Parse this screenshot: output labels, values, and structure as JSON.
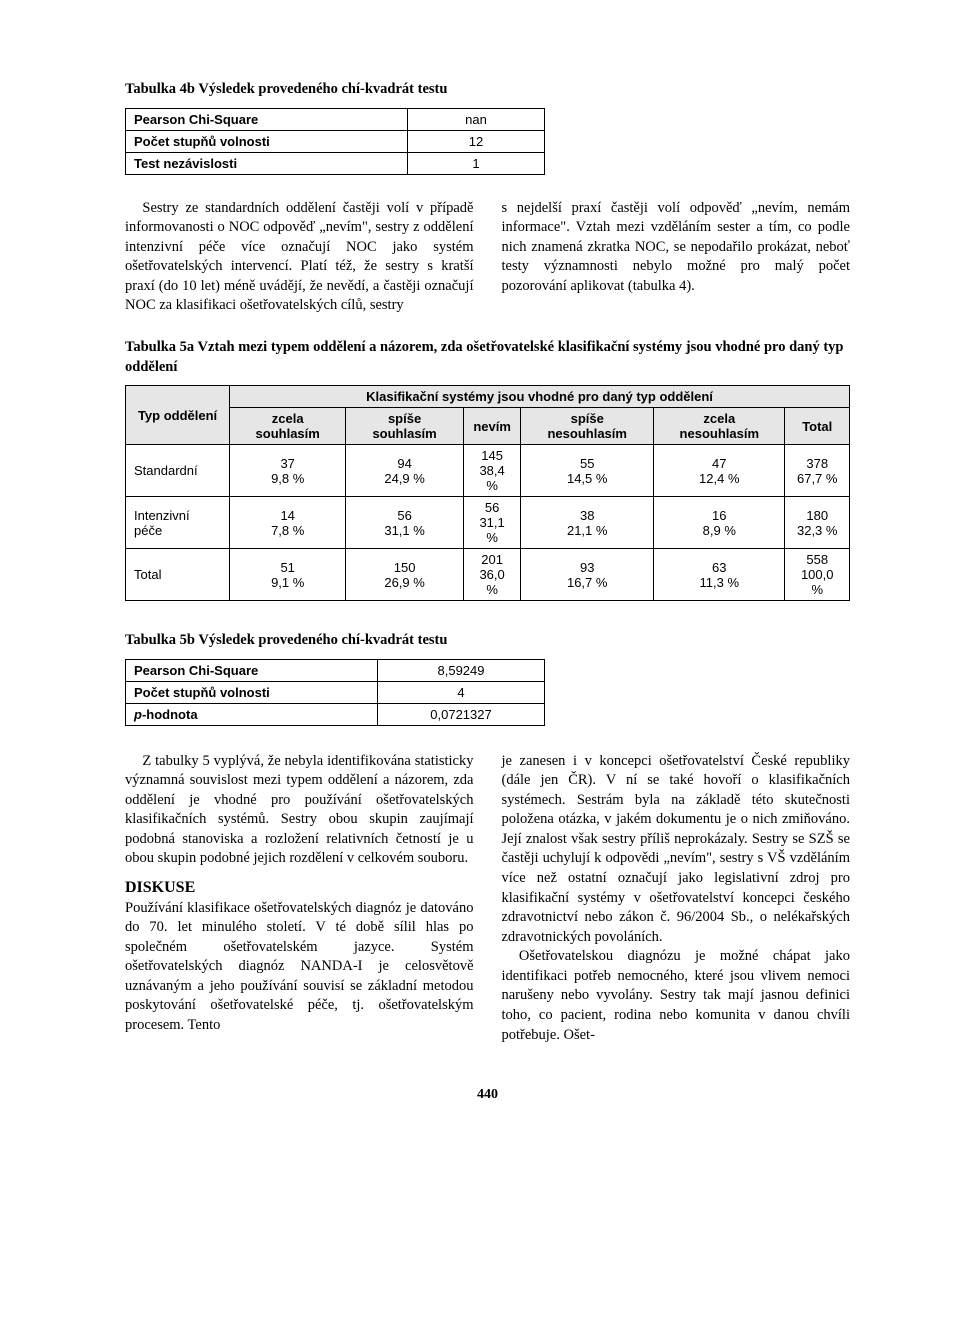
{
  "table4b": {
    "caption": "Tabulka 4b  Výsledek provedeného chí-kvadrát testu",
    "rows": [
      {
        "label": "Pearson Chi-Square",
        "value": "nan"
      },
      {
        "label": "Počet stupňů volnosti",
        "value": "12"
      },
      {
        "label": "Test nezávislosti",
        "value": "1"
      }
    ]
  },
  "para4_left": "Sestry ze standardních oddělení častěji volí v případě informovanosti o NOC odpověď „nevím\", sestry z oddělení intenzivní péče více označují NOC jako systém ošetřovatelských intervencí. Platí též, že sestry s kratší praxí (do 10 let) méně uvádějí, že nevědí, a častěji označují NOC za klasifikaci ošetřovatelských cílů, sestry",
  "para4_right": "s nejdelší praxí častěji volí odpověď „nevím, nemám informace\". Vztah mezi vzděláním sester a tím, co podle nich znamená zkratka NOC, se nepodařilo prokázat, neboť testy významnosti nebylo možné pro malý počet pozorování aplikovat (tabulka 4).",
  "table5a": {
    "caption": "Tabulka 5a  Vztah mezi typem oddělení a názorem, zda ošetřovatelské klasifikační systémy jsou vhodné pro daný typ oddělení",
    "super_header": "Klasifikační systémy jsou vhodné pro daný typ oddělení",
    "row_header": "Typ oddělení",
    "columns": [
      "zcela souhlasím",
      "spíše souhlasím",
      "nevím",
      "spíše nesouhlasím",
      "zcela nesouhlasím",
      "Total"
    ],
    "rows": [
      {
        "label": "Standardní",
        "cells": [
          [
            "37",
            "9,8 %"
          ],
          [
            "94",
            "24,9 %"
          ],
          [
            "145",
            "38,4 %"
          ],
          [
            "55",
            "14,5 %"
          ],
          [
            "47",
            "12,4 %"
          ],
          [
            "378",
            "67,7 %"
          ]
        ]
      },
      {
        "label": "Intenzivní péče",
        "cells": [
          [
            "14",
            "7,8 %"
          ],
          [
            "56",
            "31,1 %"
          ],
          [
            "56",
            "31,1 %"
          ],
          [
            "38",
            "21,1 %"
          ],
          [
            "16",
            "8,9 %"
          ],
          [
            "180",
            "32,3 %"
          ]
        ]
      },
      {
        "label": "Total",
        "cells": [
          [
            "51",
            "9,1 %"
          ],
          [
            "150",
            "26,9 %"
          ],
          [
            "201",
            "36,0 %"
          ],
          [
            "93",
            "16,7 %"
          ],
          [
            "63",
            "11,3 %"
          ],
          [
            "558",
            "100,0 %"
          ]
        ]
      }
    ]
  },
  "table5b": {
    "caption": "Tabulka 5b  Výsledek provedeného chí-kvadrát testu",
    "rows": [
      {
        "label": "Pearson Chi-Square",
        "value": "8,59249"
      },
      {
        "label": "Počet stupňů volnosti",
        "value": "4"
      },
      {
        "label_html": "p-hodnota",
        "label_prefix": "p",
        "label_rest": "-hodnota",
        "value": "0,0721327"
      }
    ]
  },
  "para5": "Z tabulky 5 vyplývá, že nebyla identifikována statisticky významná souvislost mezi typem oddělení a názorem, zda oddělení je vhodné pro používání ošetřovatelských klasifikačních systémů. Sestry obou skupin zaujímají podobná stanoviska a rozložení relativních četností je u obou skupin podobné jejich rozdělení v celkovém souboru.",
  "diskuse_head": "DISKUSE",
  "diskuse_p1": "Používání klasifikace ošetřovatelských diagnóz je datováno do 70. let minulého století. V té době sílil hlas po společném ošetřovatelském jazyce. Systém ošetřovatelských diagnóz NANDA-I je celosvětově uznávaným a jeho používání souvisí se základní metodou poskytování ošetřovatelské péče, tj. ošetřovatelským procesem. Tento",
  "diskuse_p2": "je zanesen i v koncepci ošetřovatelství České republiky (dále jen ČR). V ní se také hovoří o klasifikačních systémech. Sestrám byla na základě této skutečnosti položena otázka, v jakém dokumentu je o nich zmiňováno. Její znalost však sestry příliš neprokázaly. Sestry se SZŠ se častěji uchylují k odpovědi „nevím\", sestry s VŠ vzděláním více než ostatní označují jako legislativní zdroj pro klasifikační systémy v ošetřovatelství koncepci českého zdravotnictví nebo zákon č. 96/2004 Sb., o nelékařských zdravotnických povoláních.",
  "diskuse_p3": "Ošetřovatelskou diagnózu je možné chápat jako identifikaci potřeb nemocného, které jsou vlivem nemoci narušeny nebo vyvolány. Sestry tak mají jasnou definici toho, co pacient, rodina nebo komunita v danou chvíli potřebuje. Ošet-",
  "page_number": "440"
}
